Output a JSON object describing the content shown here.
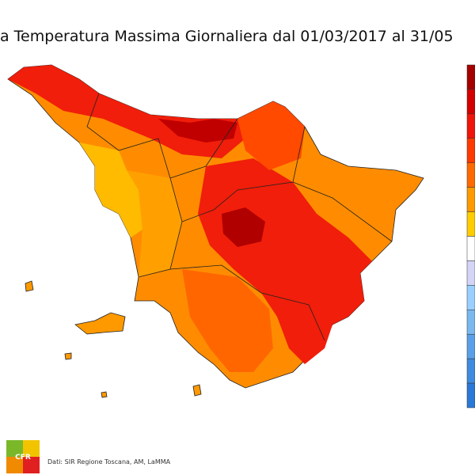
{
  "header": {
    "title": "a Temperatura Massima Giornaliera dal 01/03/2017 al 31/05"
  },
  "legend": {
    "colors": [
      "#a50000",
      "#d40000",
      "#f0140a",
      "#ff3a00",
      "#ff6a00",
      "#ff9900",
      "#ffcc00",
      "#ffffff",
      "#d4d4f8",
      "#9ad0ff",
      "#7ab8f0",
      "#5aa0e8",
      "#3f8be0",
      "#2b78d8"
    ]
  },
  "footer": {
    "logo": "CFR",
    "source": "Dati: SIR Regione Toscana, AM, LaMMA"
  }
}
